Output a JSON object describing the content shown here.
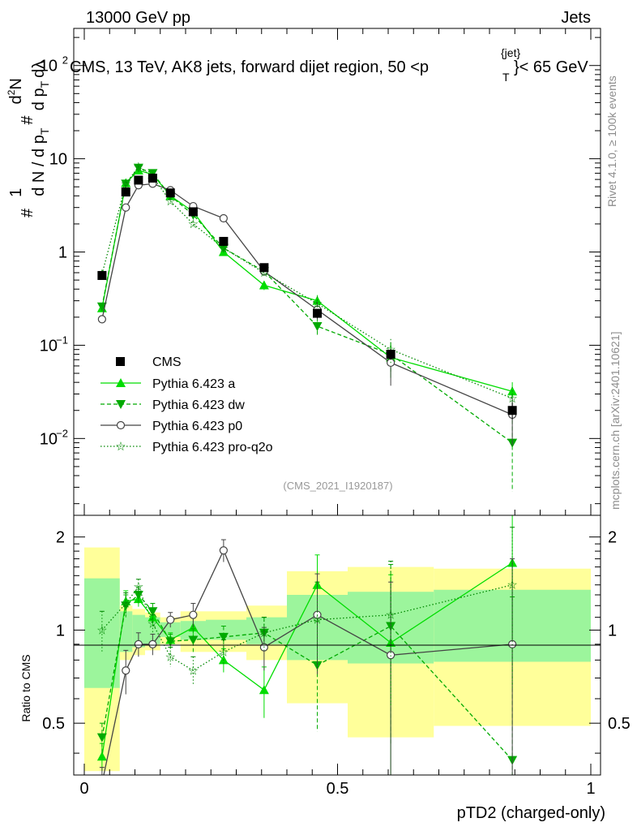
{
  "header": {
    "beam": "13000 GeV pp",
    "category": "Jets",
    "rivet_label": "Rivet 4.1.0, ≥ 100k events",
    "site_label": "mcplots.cern.ch [arXiv:2401.10621]"
  },
  "chart_data": {
    "type": "line",
    "title": "CMS, 13 TeV, AK8 jets, forward dijet region, 50 <p",
    "title_sup": "{jet}",
    "title_sub": "T",
    "title_end": "}< 65 GeV",
    "analysis_id": "(CMS_2021_I1920187)",
    "xlabel": "pTD2 (charged-only)",
    "ylabel": "# 1/dN/dp_T # d^2N/dp_T dλ",
    "ratio_ylabel": "Ratio to CMS",
    "xlim": [
      0,
      1
    ],
    "ylim": [
      0.0015,
      250
    ],
    "ratio_ylim": [
      0.34,
      2.35
    ],
    "x_ticks": [
      "0",
      "0.5",
      "1"
    ],
    "y_ticks": [
      "10^-2",
      "10^-1",
      "1",
      "10",
      "10^2"
    ],
    "ratio_ticks": [
      "0.5",
      "1",
      "2"
    ],
    "bins": [
      [
        0.0,
        0.07
      ],
      [
        0.07,
        0.095
      ],
      [
        0.095,
        0.12
      ],
      [
        0.12,
        0.15
      ],
      [
        0.15,
        0.19
      ],
      [
        0.19,
        0.24
      ],
      [
        0.24,
        0.32
      ],
      [
        0.32,
        0.4
      ],
      [
        0.4,
        0.52
      ],
      [
        0.52,
        0.69
      ],
      [
        0.69,
        1.0
      ]
    ],
    "x": [
      0.035,
      0.082,
      0.107,
      0.135,
      0.17,
      0.215,
      0.275,
      0.355,
      0.46,
      0.605,
      0.845
    ],
    "data": {
      "name": "CMS",
      "values": [
        0.56,
        4.4,
        5.9,
        6.2,
        4.3,
        2.7,
        1.3,
        0.68,
        0.22,
        0.08,
        0.02
      ],
      "err": [
        0.05,
        0.4,
        0.5,
        0.5,
        0.4,
        0.25,
        0.12,
        0.07,
        0.025,
        0.01,
        0.004
      ]
    },
    "bands": {
      "inner": [
        [
          0.65,
          1.47
        ],
        [
          0.85,
          1.15
        ],
        [
          0.88,
          1.12
        ],
        [
          0.9,
          1.1
        ],
        [
          0.95,
          1.06
        ],
        [
          0.93,
          1.07
        ],
        [
          0.93,
          1.08
        ],
        [
          0.9,
          1.1
        ],
        [
          0.8,
          1.3
        ],
        [
          0.78,
          1.33
        ],
        [
          0.79,
          1.35
        ]
      ],
      "outer": [
        [
          0.35,
          1.85
        ],
        [
          0.8,
          1.2
        ],
        [
          0.83,
          1.17
        ],
        [
          0.86,
          1.14
        ],
        [
          0.9,
          1.1
        ],
        [
          0.85,
          1.15
        ],
        [
          0.85,
          1.15
        ],
        [
          0.8,
          1.2
        ],
        [
          0.58,
          1.55
        ],
        [
          0.45,
          1.6
        ],
        [
          0.49,
          1.58
        ]
      ]
    },
    "series": [
      {
        "name": "Pythia 6.423 a",
        "color": "#00dd00",
        "dash": "none",
        "marker": "triangle-up",
        "values": [
          0.25,
          5.5,
          7.5,
          6.8,
          4.0,
          2.7,
          1.0,
          0.44,
          0.3,
          0.074,
          0.032
        ],
        "ratio": [
          0.39,
          1.24,
          1.26,
          1.1,
          0.93,
          1.02,
          0.8,
          0.64,
          1.4,
          0.91,
          1.65
        ],
        "ratio_err": [
          0.04,
          0.1,
          0.07,
          0.07,
          0.05,
          0.08,
          0.07,
          0.12,
          0.35,
          0.6,
          0.7
        ]
      },
      {
        "name": "Pythia 6.423 dw",
        "color": "#00aa00",
        "dash": "5,3",
        "marker": "triangle-down",
        "values": [
          0.26,
          5.4,
          8.0,
          7.0,
          4.0,
          2.5,
          1.1,
          0.62,
          0.16,
          0.08,
          0.009
        ],
        "ratio": [
          0.45,
          1.2,
          1.3,
          1.15,
          0.92,
          0.93,
          0.95,
          0.98,
          0.77,
          1.03,
          0.38
        ],
        "ratio_err": [
          0.05,
          0.1,
          0.08,
          0.07,
          0.05,
          0.08,
          0.08,
          0.12,
          0.3,
          0.6,
          0.9
        ]
      },
      {
        "name": "Pythia 6.423 p0",
        "color": "#444444",
        "dash": "none",
        "marker": "circle-open",
        "values": [
          0.19,
          3.0,
          5.2,
          5.4,
          4.6,
          3.1,
          2.3,
          0.62,
          0.24,
          0.065,
          0.018
        ],
        "ratio": [
          0.32,
          0.74,
          0.9,
          0.9,
          1.08,
          1.12,
          1.81,
          0.88,
          1.12,
          0.83,
          0.9
        ],
        "ratio_err": [
          0.04,
          0.12,
          0.08,
          0.07,
          0.06,
          0.1,
          0.15,
          0.14,
          0.4,
          0.6,
          0.8
        ]
      },
      {
        "name": "Pythia 6.423 pro-q2o",
        "color": "#008800",
        "dash": "1.5,2.5",
        "marker": "star",
        "values": [
          0.58,
          5.4,
          8.2,
          6.4,
          3.5,
          2.0,
          1.1,
          0.6,
          0.28,
          0.09,
          0.027
        ],
        "ratio": [
          1.0,
          1.22,
          1.38,
          1.05,
          0.82,
          0.74,
          0.85,
          0.98,
          1.08,
          1.12,
          1.4
        ],
        "ratio_err": [
          0.15,
          0.1,
          0.08,
          0.07,
          0.06,
          0.08,
          0.08,
          0.12,
          0.35,
          0.55,
          0.75
        ]
      }
    ]
  }
}
